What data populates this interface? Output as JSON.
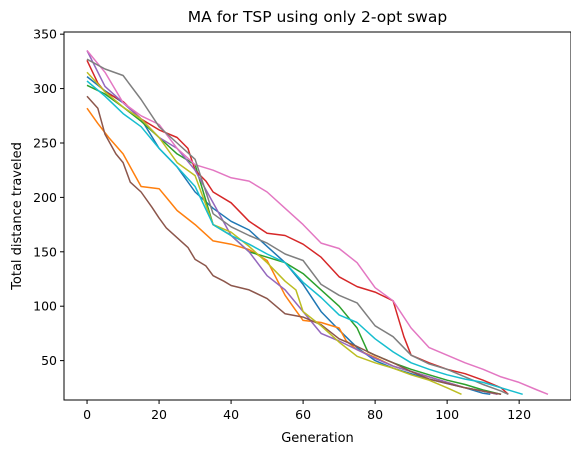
{
  "chart_data": {
    "type": "line",
    "title": "MA for TSP using only 2-opt swap",
    "xlabel": "Generation",
    "ylabel": "Total distance traveled",
    "xlim": [
      -6.4,
      134.4
    ],
    "ylim": [
      13.8,
      352.0
    ],
    "xticks": [
      0,
      20,
      40,
      60,
      80,
      100,
      120
    ],
    "yticks": [
      50,
      100,
      150,
      200,
      250,
      300,
      350
    ],
    "grid": false,
    "legend": "none",
    "series": [
      {
        "color": "#1f77b4",
        "points": [
          [
            0,
            311
          ],
          [
            5,
            298
          ],
          [
            10,
            287
          ],
          [
            15,
            272
          ],
          [
            20,
            245
          ],
          [
            25,
            228
          ],
          [
            30,
            205
          ],
          [
            35,
            190
          ],
          [
            40,
            178
          ],
          [
            45,
            170
          ],
          [
            50,
            155
          ],
          [
            55,
            140
          ],
          [
            60,
            120
          ],
          [
            65,
            95
          ],
          [
            70,
            78
          ],
          [
            75,
            62
          ],
          [
            80,
            50
          ],
          [
            85,
            43
          ],
          [
            90,
            38
          ],
          [
            95,
            33
          ],
          [
            100,
            29
          ],
          [
            105,
            25
          ],
          [
            110,
            20
          ],
          [
            112,
            19
          ]
        ]
      },
      {
        "color": "#ff7f0e",
        "points": [
          [
            0,
            282
          ],
          [
            3,
            268
          ],
          [
            6,
            255
          ],
          [
            10,
            240
          ],
          [
            13,
            222
          ],
          [
            15,
            210
          ],
          [
            20,
            208
          ],
          [
            22,
            200
          ],
          [
            25,
            188
          ],
          [
            30,
            175
          ],
          [
            35,
            160
          ],
          [
            40,
            157
          ],
          [
            45,
            152
          ],
          [
            50,
            142
          ],
          [
            55,
            110
          ],
          [
            58,
            96
          ],
          [
            60,
            87
          ],
          [
            65,
            85
          ],
          [
            70,
            80
          ],
          [
            72,
            68
          ],
          [
            75,
            60
          ],
          [
            80,
            53
          ],
          [
            85,
            45
          ],
          [
            90,
            40
          ],
          [
            95,
            35
          ],
          [
            100,
            30
          ],
          [
            105,
            25
          ],
          [
            110,
            22
          ],
          [
            114,
            19
          ]
        ]
      },
      {
        "color": "#2ca02c",
        "points": [
          [
            0,
            303
          ],
          [
            5,
            295
          ],
          [
            10,
            283
          ],
          [
            15,
            270
          ],
          [
            20,
            255
          ],
          [
            25,
            240
          ],
          [
            30,
            230
          ],
          [
            35,
            175
          ],
          [
            40,
            165
          ],
          [
            45,
            150
          ],
          [
            50,
            145
          ],
          [
            55,
            140
          ],
          [
            60,
            130
          ],
          [
            65,
            115
          ],
          [
            70,
            100
          ],
          [
            75,
            80
          ],
          [
            78,
            58
          ],
          [
            80,
            55
          ],
          [
            85,
            48
          ],
          [
            90,
            42
          ],
          [
            95,
            37
          ],
          [
            100,
            32
          ],
          [
            105,
            28
          ],
          [
            110,
            23
          ],
          [
            115,
            19
          ]
        ]
      },
      {
        "color": "#d62728",
        "points": [
          [
            0,
            326
          ],
          [
            3,
            305
          ],
          [
            5,
            297
          ],
          [
            10,
            288
          ],
          [
            15,
            272
          ],
          [
            20,
            262
          ],
          [
            25,
            255
          ],
          [
            28,
            245
          ],
          [
            30,
            225
          ],
          [
            33,
            215
          ],
          [
            35,
            205
          ],
          [
            40,
            195
          ],
          [
            45,
            178
          ],
          [
            50,
            167
          ],
          [
            55,
            165
          ],
          [
            60,
            157
          ],
          [
            65,
            145
          ],
          [
            70,
            127
          ],
          [
            75,
            118
          ],
          [
            80,
            113
          ],
          [
            85,
            105
          ],
          [
            88,
            72
          ],
          [
            90,
            55
          ],
          [
            95,
            48
          ],
          [
            100,
            42
          ],
          [
            105,
            38
          ],
          [
            110,
            32
          ],
          [
            115,
            25
          ],
          [
            117,
            19
          ]
        ]
      },
      {
        "color": "#9467bd",
        "points": [
          [
            0,
            335
          ],
          [
            5,
            302
          ],
          [
            10,
            287
          ],
          [
            15,
            272
          ],
          [
            20,
            255
          ],
          [
            25,
            245
          ],
          [
            30,
            225
          ],
          [
            35,
            195
          ],
          [
            40,
            165
          ],
          [
            45,
            150
          ],
          [
            50,
            128
          ],
          [
            55,
            115
          ],
          [
            60,
            95
          ],
          [
            65,
            75
          ],
          [
            70,
            68
          ],
          [
            75,
            60
          ],
          [
            80,
            52
          ],
          [
            85,
            45
          ],
          [
            90,
            40
          ],
          [
            95,
            35
          ],
          [
            100,
            30
          ],
          [
            105,
            25
          ],
          [
            110,
            22
          ],
          [
            114,
            19
          ]
        ]
      },
      {
        "color": "#8c564b",
        "points": [
          [
            0,
            293
          ],
          [
            3,
            282
          ],
          [
            5,
            258
          ],
          [
            8,
            240
          ],
          [
            10,
            232
          ],
          [
            12,
            214
          ],
          [
            15,
            205
          ],
          [
            18,
            191
          ],
          [
            20,
            181
          ],
          [
            22,
            172
          ],
          [
            25,
            163
          ],
          [
            28,
            154
          ],
          [
            30,
            143
          ],
          [
            33,
            137
          ],
          [
            35,
            128
          ],
          [
            38,
            123
          ],
          [
            40,
            119
          ],
          [
            45,
            115
          ],
          [
            50,
            107
          ],
          [
            55,
            93
          ],
          [
            60,
            90
          ],
          [
            65,
            83
          ],
          [
            70,
            70
          ],
          [
            75,
            63
          ],
          [
            80,
            55
          ],
          [
            85,
            48
          ],
          [
            90,
            40
          ],
          [
            95,
            33
          ],
          [
            100,
            29
          ],
          [
            105,
            25
          ],
          [
            110,
            22
          ],
          [
            115,
            19
          ]
        ]
      },
      {
        "color": "#e377c2",
        "points": [
          [
            0,
            335
          ],
          [
            5,
            315
          ],
          [
            10,
            287
          ],
          [
            15,
            275
          ],
          [
            20,
            267
          ],
          [
            25,
            245
          ],
          [
            30,
            230
          ],
          [
            35,
            225
          ],
          [
            40,
            218
          ],
          [
            45,
            215
          ],
          [
            50,
            205
          ],
          [
            55,
            190
          ],
          [
            60,
            175
          ],
          [
            65,
            158
          ],
          [
            70,
            153
          ],
          [
            75,
            140
          ],
          [
            80,
            117
          ],
          [
            85,
            105
          ],
          [
            90,
            80
          ],
          [
            95,
            62
          ],
          [
            100,
            55
          ],
          [
            105,
            48
          ],
          [
            110,
            42
          ],
          [
            115,
            35
          ],
          [
            120,
            30
          ],
          [
            125,
            23
          ],
          [
            128,
            19
          ]
        ]
      },
      {
        "color": "#7f7f7f",
        "points": [
          [
            0,
            327
          ],
          [
            5,
            318
          ],
          [
            10,
            312
          ],
          [
            15,
            290
          ],
          [
            20,
            265
          ],
          [
            25,
            250
          ],
          [
            30,
            235
          ],
          [
            35,
            185
          ],
          [
            40,
            173
          ],
          [
            45,
            165
          ],
          [
            50,
            158
          ],
          [
            55,
            148
          ],
          [
            60,
            142
          ],
          [
            65,
            120
          ],
          [
            70,
            110
          ],
          [
            75,
            103
          ],
          [
            80,
            82
          ],
          [
            85,
            72
          ],
          [
            90,
            55
          ],
          [
            95,
            47
          ],
          [
            100,
            42
          ],
          [
            105,
            35
          ],
          [
            110,
            28
          ],
          [
            115,
            22
          ],
          [
            117,
            19
          ]
        ]
      },
      {
        "color": "#bcbd22",
        "points": [
          [
            0,
            315
          ],
          [
            5,
            297
          ],
          [
            10,
            283
          ],
          [
            15,
            272
          ],
          [
            20,
            255
          ],
          [
            25,
            232
          ],
          [
            30,
            220
          ],
          [
            35,
            175
          ],
          [
            40,
            168
          ],
          [
            45,
            155
          ],
          [
            50,
            140
          ],
          [
            55,
            123
          ],
          [
            58,
            115
          ],
          [
            60,
            95
          ],
          [
            65,
            82
          ],
          [
            70,
            67
          ],
          [
            75,
            54
          ],
          [
            80,
            48
          ],
          [
            85,
            43
          ],
          [
            90,
            37
          ],
          [
            95,
            32
          ],
          [
            100,
            25
          ],
          [
            104,
            19
          ]
        ]
      },
      {
        "color": "#17becf",
        "points": [
          [
            0,
            307
          ],
          [
            5,
            293
          ],
          [
            10,
            277
          ],
          [
            15,
            265
          ],
          [
            20,
            245
          ],
          [
            25,
            228
          ],
          [
            30,
            210
          ],
          [
            35,
            175
          ],
          [
            40,
            165
          ],
          [
            45,
            157
          ],
          [
            50,
            148
          ],
          [
            55,
            140
          ],
          [
            60,
            122
          ],
          [
            65,
            108
          ],
          [
            70,
            92
          ],
          [
            75,
            85
          ],
          [
            80,
            70
          ],
          [
            85,
            58
          ],
          [
            90,
            48
          ],
          [
            95,
            42
          ],
          [
            100,
            37
          ],
          [
            105,
            33
          ],
          [
            110,
            30
          ],
          [
            115,
            25
          ],
          [
            121,
            19
          ]
        ]
      }
    ]
  }
}
